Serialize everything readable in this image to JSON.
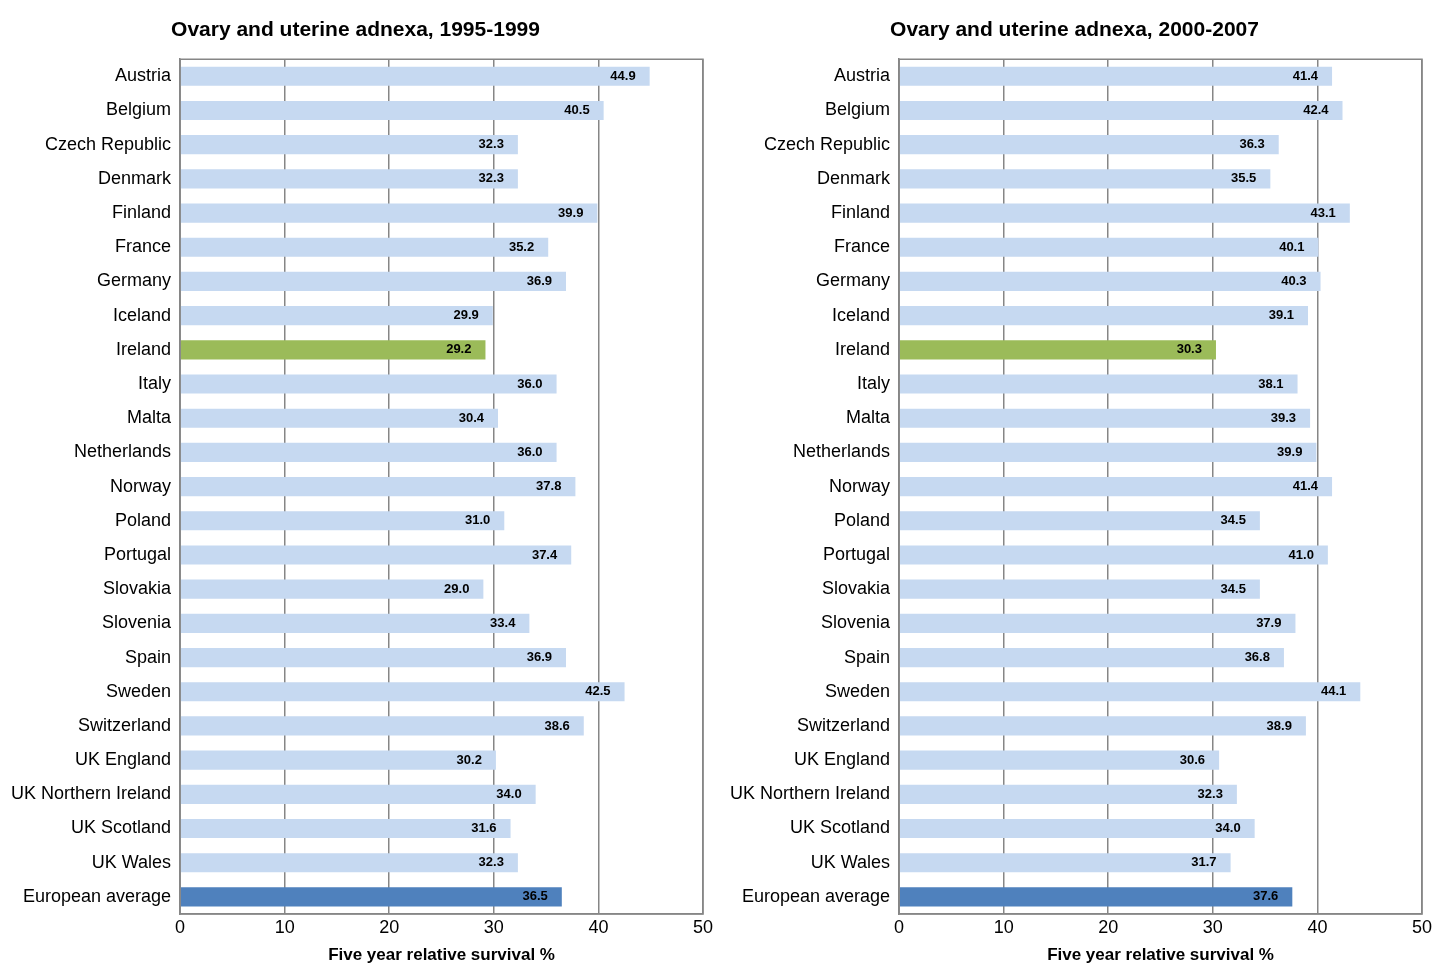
{
  "chart_data": [
    {
      "type": "bar",
      "orientation": "horizontal",
      "title": "Ovary and uterine adnexa, 1995-1999",
      "xlabel": "Five year relative survival %",
      "categories": [
        "Austria",
        "Belgium",
        "Czech Republic",
        "Denmark",
        "Finland",
        "France",
        "Germany",
        "Iceland",
        "Ireland",
        "Italy",
        "Malta",
        "Netherlands",
        "Norway",
        "Poland",
        "Portugal",
        "Slovakia",
        "Slovenia",
        "Spain",
        "Sweden",
        "Switzerland",
        "UK England",
        "UK Northern Ireland",
        "UK Scotland",
        "UK Wales",
        "European average"
      ],
      "values": [
        44.9,
        40.5,
        32.3,
        32.3,
        39.9,
        35.2,
        36.9,
        29.9,
        29.2,
        36.0,
        30.4,
        36.0,
        37.8,
        31.0,
        37.4,
        29.0,
        33.4,
        36.9,
        42.5,
        38.6,
        30.2,
        34.0,
        31.6,
        32.3,
        36.5
      ],
      "value_labels": [
        "44.9",
        "40.5",
        "32.3",
        "32.3",
        "39.9",
        "35.2",
        "36.9",
        "29.9",
        "29.2",
        "36.0",
        "30.4",
        "36.0",
        "37.8",
        "31.0",
        "37.4",
        "29.0",
        "33.4",
        "36.9",
        "42.5",
        "38.6",
        "30.2",
        "34.0",
        "31.6",
        "32.3",
        "36.5"
      ],
      "colors": [
        "#c6d9f1",
        "#c6d9f1",
        "#c6d9f1",
        "#c6d9f1",
        "#c6d9f1",
        "#c6d9f1",
        "#c6d9f1",
        "#c6d9f1",
        "#9bbb59",
        "#c6d9f1",
        "#c6d9f1",
        "#c6d9f1",
        "#c6d9f1",
        "#c6d9f1",
        "#c6d9f1",
        "#c6d9f1",
        "#c6d9f1",
        "#c6d9f1",
        "#c6d9f1",
        "#c6d9f1",
        "#c6d9f1",
        "#c6d9f1",
        "#c6d9f1",
        "#c6d9f1",
        "#4f81bd"
      ],
      "xlim": [
        0,
        50
      ],
      "xticks": [
        0,
        10,
        20,
        30,
        40,
        50
      ],
      "grid": "x",
      "legend": false
    },
    {
      "type": "bar",
      "orientation": "horizontal",
      "title": "Ovary and uterine adnexa, 2000-2007",
      "xlabel": "Five year relative survival %",
      "categories": [
        "Austria",
        "Belgium",
        "Czech Republic",
        "Denmark",
        "Finland",
        "France",
        "Germany",
        "Iceland",
        "Ireland",
        "Italy",
        "Malta",
        "Netherlands",
        "Norway",
        "Poland",
        "Portugal",
        "Slovakia",
        "Slovenia",
        "Spain",
        "Sweden",
        "Switzerland",
        "UK England",
        "UK Northern Ireland",
        "UK Scotland",
        "UK Wales",
        "European average"
      ],
      "values": [
        41.4,
        42.4,
        36.3,
        35.5,
        43.1,
        40.1,
        40.3,
        39.1,
        30.3,
        38.1,
        39.3,
        39.9,
        41.4,
        34.5,
        41.0,
        34.5,
        37.9,
        36.8,
        44.1,
        38.9,
        30.6,
        32.3,
        34.0,
        31.7,
        37.6
      ],
      "value_labels": [
        "41.4",
        "42.4",
        "36.3",
        "35.5",
        "43.1",
        "40.1",
        "40.3",
        "39.1",
        "30.3",
        "38.1",
        "39.3",
        "39.9",
        "41.4",
        "34.5",
        "41.0",
        "34.5",
        "37.9",
        "36.8",
        "44.1",
        "38.9",
        "30.6",
        "32.3",
        "34.0",
        "31.7",
        "37.6"
      ],
      "colors": [
        "#c6d9f1",
        "#c6d9f1",
        "#c6d9f1",
        "#c6d9f1",
        "#c6d9f1",
        "#c6d9f1",
        "#c6d9f1",
        "#c6d9f1",
        "#9bbb59",
        "#c6d9f1",
        "#c6d9f1",
        "#c6d9f1",
        "#c6d9f1",
        "#c6d9f1",
        "#c6d9f1",
        "#c6d9f1",
        "#c6d9f1",
        "#c6d9f1",
        "#c6d9f1",
        "#c6d9f1",
        "#c6d9f1",
        "#c6d9f1",
        "#c6d9f1",
        "#c6d9f1",
        "#4f81bd"
      ],
      "xlim": [
        0,
        50
      ],
      "xticks": [
        0,
        10,
        20,
        30,
        40,
        50
      ],
      "grid": "x",
      "legend": false
    }
  ]
}
